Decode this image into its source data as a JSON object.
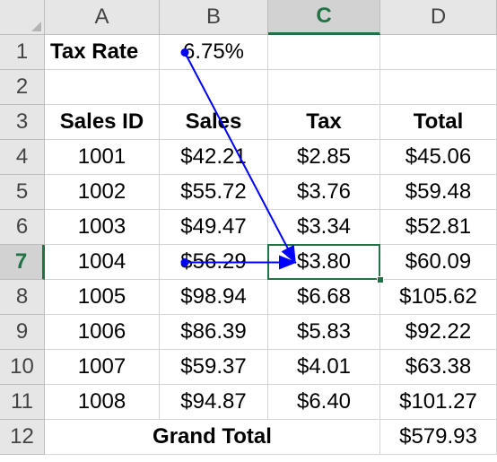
{
  "columns": [
    "A",
    "B",
    "C",
    "D"
  ],
  "selected_column": "C",
  "rows": [
    "1",
    "2",
    "3",
    "4",
    "5",
    "6",
    "7",
    "8",
    "9",
    "10",
    "11",
    "12"
  ],
  "selected_row": "7",
  "cells": {
    "A1": "Tax Rate",
    "B1": "6.75%",
    "A3": "Sales ID",
    "B3": "Sales",
    "C3": "Tax",
    "D3": "Total",
    "A4": "1001",
    "B4": "$42.21",
    "C4": "$2.85",
    "D4": "$45.06",
    "A5": "1002",
    "B5": "$55.72",
    "C5": "$3.76",
    "D5": "$59.48",
    "A6": "1003",
    "B6": "$49.47",
    "C6": "$3.34",
    "D6": "$52.81",
    "A7": "1004",
    "B7": "$56.29",
    "C7": "$3.80",
    "D7": "$60.09",
    "A8": "1005",
    "B8": "$98.94",
    "C8": "$6.68",
    "D8": "$105.62",
    "A9": "1006",
    "B9": "$86.39",
    "C9": "$5.83",
    "D9": "$92.22",
    "A10": "1007",
    "B10": "$59.37",
    "C10": "$4.01",
    "D10": "$63.38",
    "A11": "1008",
    "B11": "$94.87",
    "C11": "$6.40",
    "D11": "$101.27",
    "A12": "Grand Total",
    "D12": "$579.93"
  },
  "active_cell": "C7",
  "precedent_arrows": [
    {
      "from": "B1",
      "to": "C7"
    },
    {
      "from": "B7",
      "to": "C7"
    }
  ],
  "colors": {
    "accent": "#217346",
    "arrow": "#0000ff",
    "header_bg": "#e6e6e6",
    "gridline": "#d4d4d4"
  }
}
